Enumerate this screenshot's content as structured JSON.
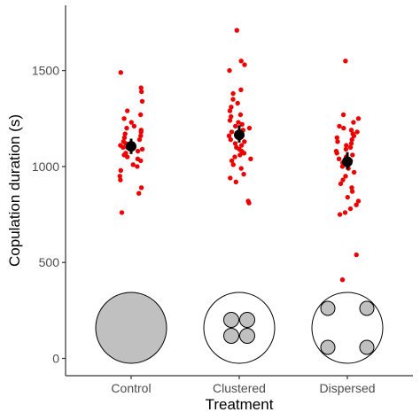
{
  "chart_data": {
    "type": "scatter",
    "xlabel": "Treatment",
    "ylabel": "Copulation duration (s)",
    "categories": [
      "Control",
      "Clustered",
      "Dispersed"
    ],
    "ylim": [
      -90,
      1840
    ],
    "yticks": [
      0,
      500,
      1000,
      1500
    ],
    "grid": false,
    "colors": {
      "points": "#ee0000",
      "mean": "#000000",
      "axis": "#333333",
      "icon_fill": "#c0c0c0"
    },
    "points": [
      [
        760,
        860,
        890,
        930,
        950,
        980,
        1000,
        1010,
        1030,
        1040,
        1050,
        1060,
        1070,
        1080,
        1090,
        1100,
        1100,
        1110,
        1120,
        1130,
        1140,
        1150,
        1160,
        1170,
        1180,
        1190,
        1200,
        1210,
        1230,
        1250,
        1270,
        1290,
        1340,
        1390,
        1410,
        1490
      ],
      [
        810,
        820,
        920,
        940,
        960,
        990,
        1010,
        1030,
        1040,
        1050,
        1060,
        1070,
        1080,
        1090,
        1100,
        1110,
        1120,
        1130,
        1140,
        1150,
        1160,
        1170,
        1180,
        1190,
        1200,
        1210,
        1220,
        1230,
        1240,
        1260,
        1270,
        1290,
        1310,
        1330,
        1350,
        1380,
        1400,
        1500,
        1530,
        1550,
        1710
      ],
      [
        410,
        540,
        750,
        760,
        780,
        800,
        820,
        840,
        870,
        890,
        910,
        930,
        950,
        970,
        990,
        1000,
        1010,
        1020,
        1030,
        1040,
        1050,
        1060,
        1070,
        1080,
        1090,
        1100,
        1110,
        1120,
        1130,
        1140,
        1150,
        1160,
        1170,
        1180,
        1190,
        1200,
        1210,
        1230,
        1250,
        1270,
        1550
      ]
    ],
    "means": [
      {
        "mean": 1105,
        "low": 1065,
        "high": 1145
      },
      {
        "mean": 1165,
        "low": 1125,
        "high": 1215
      },
      {
        "mean": 1025,
        "low": 985,
        "high": 1075
      }
    ],
    "icons": [
      "control-disc",
      "clustered-four-circles",
      "dispersed-four-circles"
    ]
  }
}
